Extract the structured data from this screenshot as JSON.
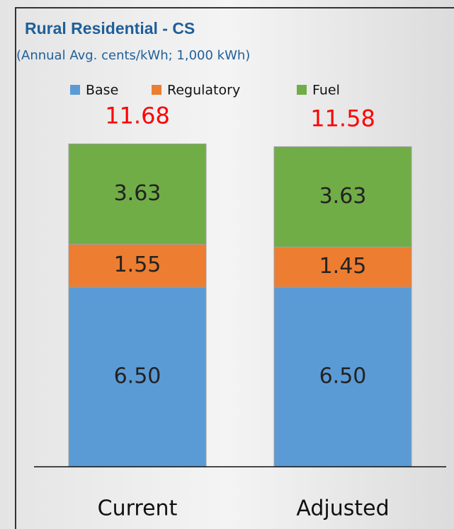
{
  "chart_data": {
    "type": "stacked_bar",
    "title": "Rural Residential - CS",
    "subtitle": "(Annual Avg. cents/kWh; 1,000 kWh)",
    "categories": [
      "Current",
      "Adjusted"
    ],
    "series": [
      {
        "name": "Base",
        "color": "#5b9bd5",
        "values": [
          6.5,
          6.5
        ],
        "value_labels": [
          "6.50",
          "6.50"
        ]
      },
      {
        "name": "Regulatory",
        "color": "#ed7d31",
        "values": [
          1.55,
          1.45
        ],
        "value_labels": [
          "1.55",
          "1.45"
        ]
      },
      {
        "name": "Fuel",
        "color": "#70ad47",
        "values": [
          3.63,
          3.63
        ],
        "value_labels": [
          "3.63",
          "3.63"
        ]
      }
    ],
    "totals": [
      11.68,
      11.58
    ],
    "totals_color": "#ff0000",
    "ylim": [
      0,
      12
    ],
    "legend": "top"
  }
}
